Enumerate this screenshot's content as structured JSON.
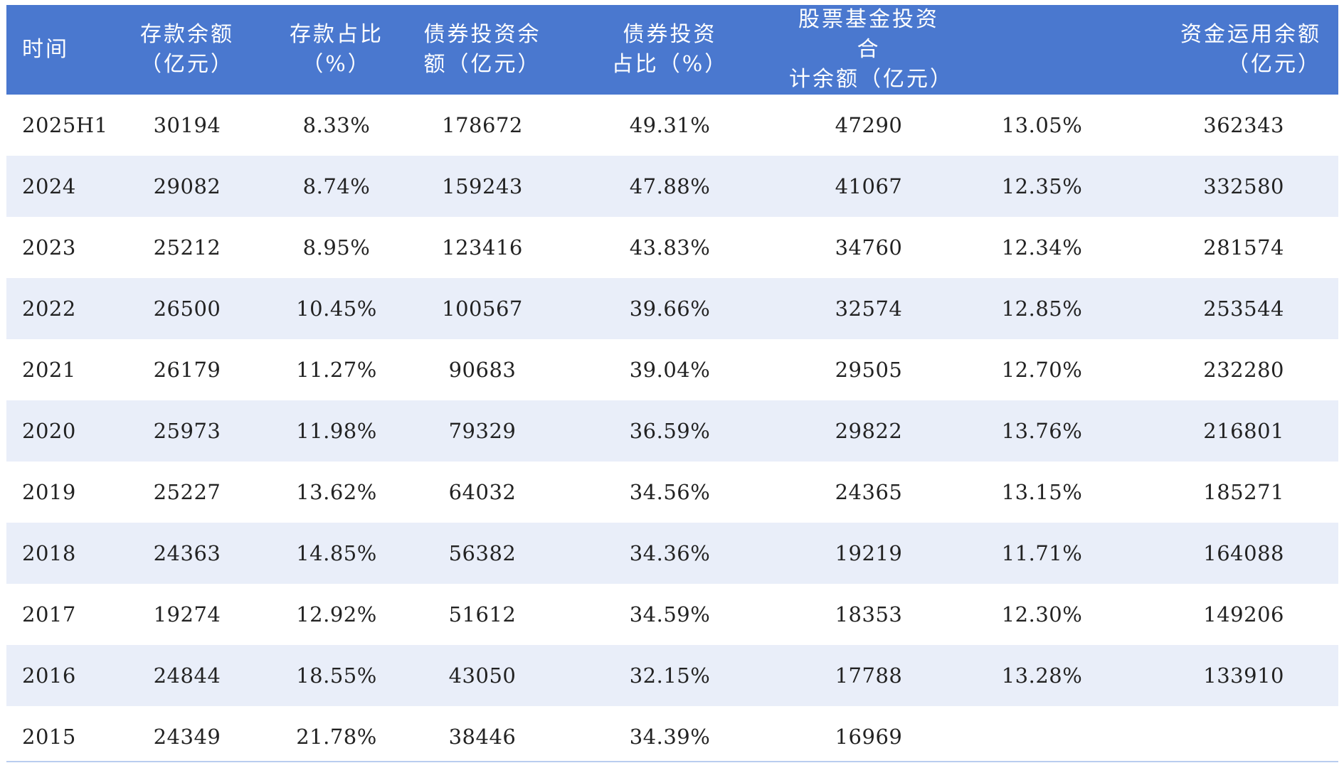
{
  "table": {
    "headers": [
      "时间",
      "存款余额\n（亿元）",
      "存款占比\n（%）",
      "债券投资余\n额（亿元）",
      "债券投资\n占比（%）",
      "股票基金投资合\n计余额（亿元）",
      "",
      "资金运用余额\n（亿元）"
    ],
    "rows": [
      [
        "2025H1",
        "30194",
        "8.33%",
        "178672",
        "49.31%",
        "47290",
        "13.05%",
        "362343"
      ],
      [
        "2024",
        "29082",
        "8.74%",
        "159243",
        "47.88%",
        "41067",
        "12.35%",
        "332580"
      ],
      [
        "2023",
        "25212",
        "8.95%",
        "123416",
        "43.83%",
        "34760",
        "12.34%",
        "281574"
      ],
      [
        "2022",
        "26500",
        "10.45%",
        "100567",
        "39.66%",
        "32574",
        "12.85%",
        "253544"
      ],
      [
        "2021",
        "26179",
        "11.27%",
        "90683",
        "39.04%",
        "29505",
        "12.70%",
        "232280"
      ],
      [
        "2020",
        "25973",
        "11.98%",
        "79329",
        "36.59%",
        "29822",
        "13.76%",
        "216801"
      ],
      [
        "2019",
        "25227",
        "13.62%",
        "64032",
        "34.56%",
        "24365",
        "13.15%",
        "185271"
      ],
      [
        "2018",
        "24363",
        "14.85%",
        "56382",
        "34.36%",
        "19219",
        "11.71%",
        "164088"
      ],
      [
        "2017",
        "19274",
        "12.92%",
        "51612",
        "34.59%",
        "18353",
        "12.30%",
        "149206"
      ],
      [
        "2016",
        "24844",
        "18.55%",
        "43050",
        "32.15%",
        "17788",
        "13.28%",
        "133910"
      ],
      [
        "2015",
        "24349",
        "21.78%",
        "38446",
        "34.39%",
        "16969",
        "",
        ""
      ]
    ]
  },
  "colors": {
    "header_bg": "#4a78cf",
    "header_text": "#ffffff",
    "row_alt_bg": "#e9eef9",
    "cell_text": "#222222"
  }
}
